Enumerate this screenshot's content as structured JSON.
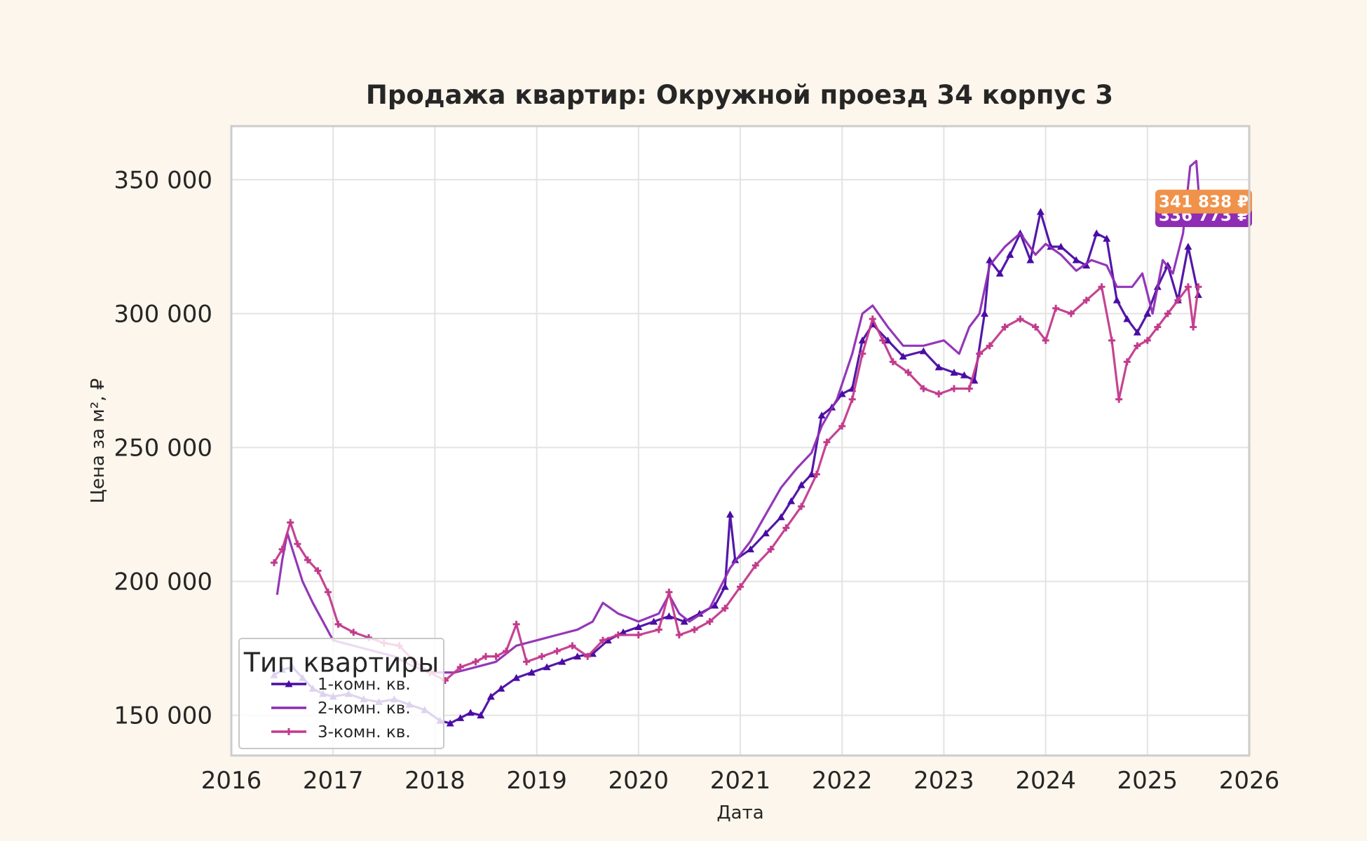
{
  "chart_data": {
    "type": "line",
    "title": "Продажа квартир: Окружной проезд 34 корпус 3",
    "xlabel": "Дата",
    "ylabel": "Цена за м², ₽",
    "xlim": [
      2016.0,
      2026.0
    ],
    "ylim": [
      135000,
      370000
    ],
    "x_ticks": [
      "2016",
      "2017",
      "2018",
      "2019",
      "2020",
      "2021",
      "2022",
      "2023",
      "2024",
      "2025",
      "2026"
    ],
    "y_ticks": [
      "150 000",
      "200 000",
      "250 000",
      "300 000",
      "350 000"
    ],
    "grid": true,
    "legend": {
      "title": "Тип квартиры",
      "position": "bottom-left"
    },
    "series": [
      {
        "name": "1-комн. кв.",
        "color": "#4a0ca3",
        "marker": "triangle",
        "points": [
          [
            2016.42,
            165000
          ],
          [
            2016.5,
            167000
          ],
          [
            2016.6,
            168000
          ],
          [
            2016.7,
            164000
          ],
          [
            2016.8,
            160000
          ],
          [
            2016.9,
            158000
          ],
          [
            2017.0,
            157000
          ],
          [
            2017.15,
            158000
          ],
          [
            2017.3,
            156000
          ],
          [
            2017.45,
            155000
          ],
          [
            2017.6,
            156000
          ],
          [
            2017.75,
            154000
          ],
          [
            2017.9,
            152000
          ],
          [
            2018.05,
            148000
          ],
          [
            2018.15,
            147000
          ],
          [
            2018.25,
            149000
          ],
          [
            2018.35,
            151000
          ],
          [
            2018.45,
            150000
          ],
          [
            2018.55,
            157000
          ],
          [
            2018.65,
            160000
          ],
          [
            2018.8,
            164000
          ],
          [
            2018.95,
            166000
          ],
          [
            2019.1,
            168000
          ],
          [
            2019.25,
            170000
          ],
          [
            2019.4,
            172000
          ],
          [
            2019.55,
            173000
          ],
          [
            2019.7,
            178000
          ],
          [
            2019.85,
            181000
          ],
          [
            2020.0,
            183000
          ],
          [
            2020.15,
            185000
          ],
          [
            2020.3,
            187000
          ],
          [
            2020.45,
            185000
          ],
          [
            2020.6,
            188000
          ],
          [
            2020.75,
            191000
          ],
          [
            2020.85,
            198000
          ],
          [
            2020.9,
            225000
          ],
          [
            2020.95,
            208000
          ],
          [
            2021.1,
            212000
          ],
          [
            2021.25,
            218000
          ],
          [
            2021.4,
            224000
          ],
          [
            2021.5,
            230000
          ],
          [
            2021.6,
            236000
          ],
          [
            2021.7,
            240000
          ],
          [
            2021.8,
            262000
          ],
          [
            2021.9,
            265000
          ],
          [
            2022.0,
            270000
          ],
          [
            2022.1,
            272000
          ],
          [
            2022.2,
            290000
          ],
          [
            2022.3,
            296000
          ],
          [
            2022.45,
            290000
          ],
          [
            2022.6,
            284000
          ],
          [
            2022.8,
            286000
          ],
          [
            2022.95,
            280000
          ],
          [
            2023.1,
            278000
          ],
          [
            2023.2,
            277000
          ],
          [
            2023.3,
            275000
          ],
          [
            2023.4,
            300000
          ],
          [
            2023.45,
            320000
          ],
          [
            2023.55,
            315000
          ],
          [
            2023.65,
            322000
          ],
          [
            2023.75,
            330000
          ],
          [
            2023.85,
            320000
          ],
          [
            2023.95,
            338000
          ],
          [
            2024.05,
            325000
          ],
          [
            2024.15,
            325000
          ],
          [
            2024.3,
            320000
          ],
          [
            2024.4,
            318000
          ],
          [
            2024.5,
            330000
          ],
          [
            2024.6,
            328000
          ],
          [
            2024.7,
            305000
          ],
          [
            2024.8,
            298000
          ],
          [
            2024.9,
            293000
          ],
          [
            2025.0,
            300000
          ],
          [
            2025.1,
            310000
          ],
          [
            2025.2,
            318000
          ],
          [
            2025.3,
            305000
          ],
          [
            2025.4,
            325000
          ],
          [
            2025.5,
            307000
          ]
        ]
      },
      {
        "name": "2-комн. кв.",
        "color": "#8e2cb4",
        "marker": "none",
        "points": [
          [
            2016.45,
            195000
          ],
          [
            2016.5,
            208000
          ],
          [
            2016.55,
            218000
          ],
          [
            2016.6,
            212000
          ],
          [
            2016.7,
            200000
          ],
          [
            2016.8,
            192000
          ],
          [
            2016.9,
            185000
          ],
          [
            2017.0,
            178000
          ],
          [
            2017.2,
            176000
          ],
          [
            2017.4,
            174000
          ],
          [
            2017.6,
            172000
          ],
          [
            2017.8,
            168000
          ],
          [
            2018.0,
            166000
          ],
          [
            2018.2,
            166000
          ],
          [
            2018.4,
            168000
          ],
          [
            2018.6,
            170000
          ],
          [
            2018.8,
            176000
          ],
          [
            2019.0,
            178000
          ],
          [
            2019.2,
            180000
          ],
          [
            2019.4,
            182000
          ],
          [
            2019.55,
            185000
          ],
          [
            2019.65,
            192000
          ],
          [
            2019.8,
            188000
          ],
          [
            2020.0,
            185000
          ],
          [
            2020.2,
            188000
          ],
          [
            2020.3,
            195000
          ],
          [
            2020.4,
            188000
          ],
          [
            2020.5,
            185000
          ],
          [
            2020.7,
            190000
          ],
          [
            2020.9,
            205000
          ],
          [
            2021.1,
            215000
          ],
          [
            2021.25,
            225000
          ],
          [
            2021.4,
            235000
          ],
          [
            2021.55,
            242000
          ],
          [
            2021.7,
            248000
          ],
          [
            2021.8,
            258000
          ],
          [
            2021.95,
            268000
          ],
          [
            2022.1,
            285000
          ],
          [
            2022.2,
            300000
          ],
          [
            2022.3,
            303000
          ],
          [
            2022.45,
            295000
          ],
          [
            2022.6,
            288000
          ],
          [
            2022.8,
            288000
          ],
          [
            2023.0,
            290000
          ],
          [
            2023.15,
            285000
          ],
          [
            2023.25,
            295000
          ],
          [
            2023.35,
            300000
          ],
          [
            2023.45,
            318000
          ],
          [
            2023.6,
            325000
          ],
          [
            2023.75,
            330000
          ],
          [
            2023.9,
            322000
          ],
          [
            2024.0,
            326000
          ],
          [
            2024.15,
            322000
          ],
          [
            2024.3,
            316000
          ],
          [
            2024.45,
            320000
          ],
          [
            2024.6,
            318000
          ],
          [
            2024.7,
            310000
          ],
          [
            2024.85,
            310000
          ],
          [
            2024.95,
            315000
          ],
          [
            2025.05,
            300000
          ],
          [
            2025.15,
            320000
          ],
          [
            2025.25,
            315000
          ],
          [
            2025.35,
            330000
          ],
          [
            2025.42,
            355000
          ],
          [
            2025.48,
            357000
          ],
          [
            2025.52,
            337000
          ]
        ]
      },
      {
        "name": "3-комн. кв.",
        "color": "#c23a8c",
        "marker": "plus",
        "points": [
          [
            2016.42,
            207000
          ],
          [
            2016.5,
            212000
          ],
          [
            2016.58,
            222000
          ],
          [
            2016.65,
            214000
          ],
          [
            2016.75,
            208000
          ],
          [
            2016.85,
            204000
          ],
          [
            2016.95,
            196000
          ],
          [
            2017.05,
            184000
          ],
          [
            2017.2,
            181000
          ],
          [
            2017.35,
            179000
          ],
          [
            2017.5,
            177000
          ],
          [
            2017.65,
            176000
          ],
          [
            2017.8,
            170000
          ],
          [
            2017.95,
            166000
          ],
          [
            2018.1,
            163000
          ],
          [
            2018.25,
            168000
          ],
          [
            2018.4,
            170000
          ],
          [
            2018.5,
            172000
          ],
          [
            2018.6,
            172000
          ],
          [
            2018.7,
            174000
          ],
          [
            2018.8,
            184000
          ],
          [
            2018.9,
            170000
          ],
          [
            2019.05,
            172000
          ],
          [
            2019.2,
            174000
          ],
          [
            2019.35,
            176000
          ],
          [
            2019.5,
            172000
          ],
          [
            2019.65,
            178000
          ],
          [
            2019.8,
            180000
          ],
          [
            2020.0,
            180000
          ],
          [
            2020.2,
            182000
          ],
          [
            2020.3,
            196000
          ],
          [
            2020.4,
            180000
          ],
          [
            2020.55,
            182000
          ],
          [
            2020.7,
            185000
          ],
          [
            2020.85,
            190000
          ],
          [
            2021.0,
            198000
          ],
          [
            2021.15,
            206000
          ],
          [
            2021.3,
            212000
          ],
          [
            2021.45,
            220000
          ],
          [
            2021.6,
            228000
          ],
          [
            2021.75,
            240000
          ],
          [
            2021.85,
            252000
          ],
          [
            2022.0,
            258000
          ],
          [
            2022.1,
            268000
          ],
          [
            2022.2,
            285000
          ],
          [
            2022.3,
            298000
          ],
          [
            2022.4,
            290000
          ],
          [
            2022.5,
            282000
          ],
          [
            2022.65,
            278000
          ],
          [
            2022.8,
            272000
          ],
          [
            2022.95,
            270000
          ],
          [
            2023.1,
            272000
          ],
          [
            2023.25,
            272000
          ],
          [
            2023.35,
            285000
          ],
          [
            2023.45,
            288000
          ],
          [
            2023.6,
            295000
          ],
          [
            2023.75,
            298000
          ],
          [
            2023.9,
            295000
          ],
          [
            2024.0,
            290000
          ],
          [
            2024.1,
            302000
          ],
          [
            2024.25,
            300000
          ],
          [
            2024.4,
            305000
          ],
          [
            2024.55,
            310000
          ],
          [
            2024.65,
            290000
          ],
          [
            2024.72,
            268000
          ],
          [
            2024.8,
            282000
          ],
          [
            2024.9,
            288000
          ],
          [
            2025.0,
            290000
          ],
          [
            2025.1,
            295000
          ],
          [
            2025.2,
            300000
          ],
          [
            2025.3,
            305000
          ],
          [
            2025.4,
            310000
          ],
          [
            2025.45,
            295000
          ],
          [
            2025.5,
            310000
          ]
        ]
      }
    ],
    "badges": [
      {
        "label": "341 838 ₽",
        "value": 341838,
        "color": "#f0924a"
      },
      {
        "label": "336 773 ₽",
        "value": 336773,
        "color": "#8e2cb4"
      }
    ]
  }
}
